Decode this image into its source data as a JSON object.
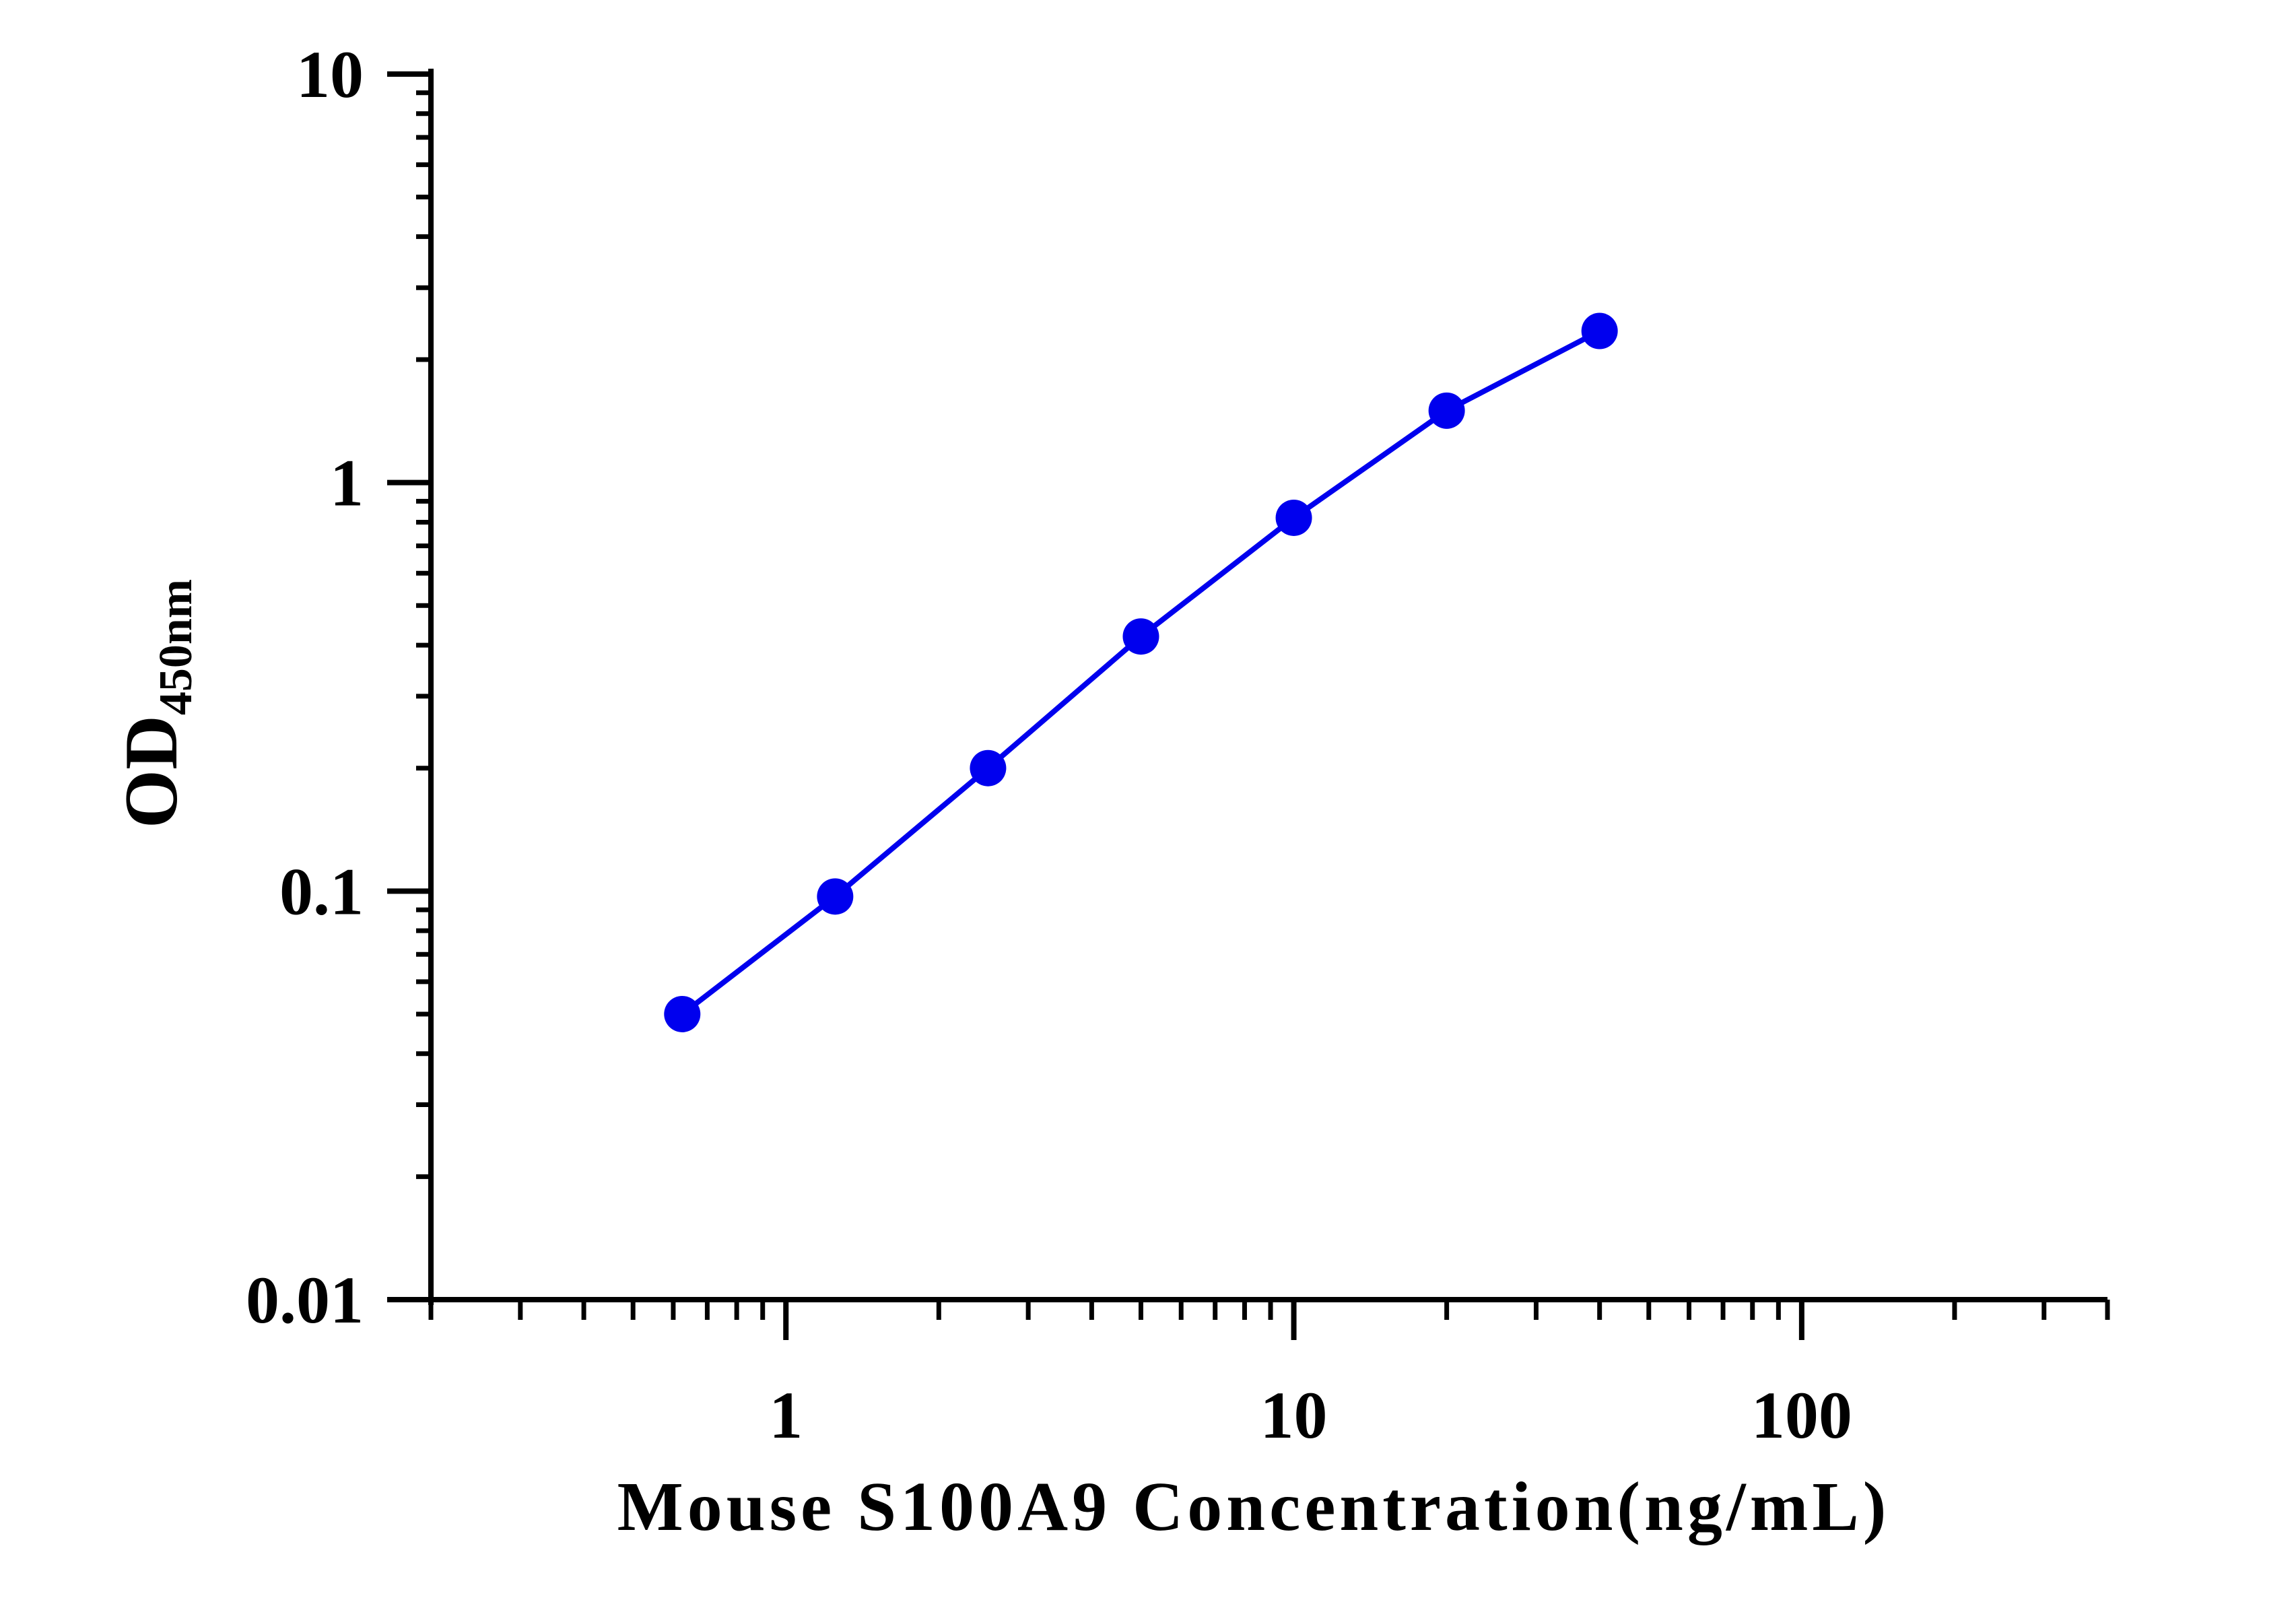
{
  "chart_data": {
    "type": "line",
    "title": "",
    "xlabel": "Mouse S100A9 Concentration(ng/mL)",
    "ylabel": {
      "main": "OD",
      "subscript": "450nm"
    },
    "x_scale": "log",
    "y_scale": "log",
    "xlim": [
      0.2,
      400
    ],
    "ylim": [
      0.01,
      10
    ],
    "x_ticks": [
      {
        "value": 1,
        "label": "1"
      },
      {
        "value": 10,
        "label": "10"
      },
      {
        "value": 100,
        "label": "100"
      }
    ],
    "y_ticks": [
      {
        "value": 0.01,
        "label": "0.01"
      },
      {
        "value": 0.1,
        "label": "0.1"
      },
      {
        "value": 1,
        "label": "1"
      },
      {
        "value": 10,
        "label": "10"
      }
    ],
    "grid": false,
    "legend": "none",
    "series": [
      {
        "color": "#0000ee",
        "marker": "circle",
        "x": [
          0.625,
          1.25,
          2.5,
          5,
          10,
          20,
          40
        ],
        "y": [
          0.05,
          0.097,
          0.2,
          0.42,
          0.82,
          1.5,
          2.35
        ]
      }
    ]
  }
}
